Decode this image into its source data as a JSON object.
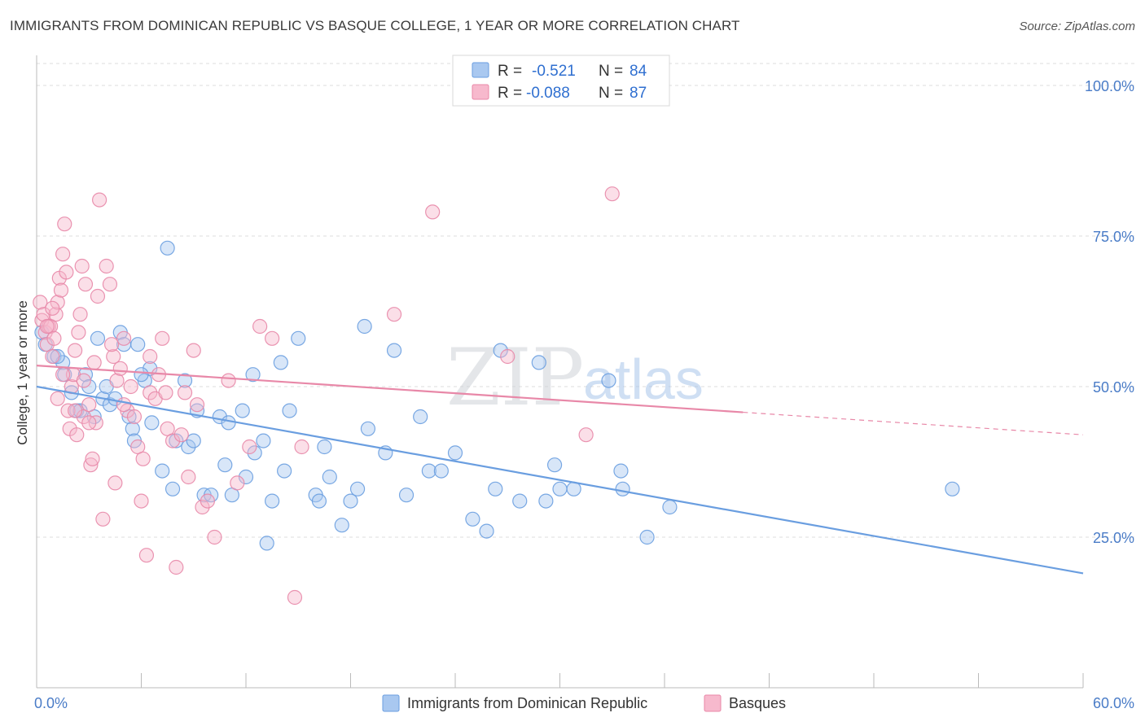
{
  "title": "IMMIGRANTS FROM DOMINICAN REPUBLIC VS BASQUE COLLEGE, 1 YEAR OR MORE CORRELATION CHART",
  "source": "Source: ZipAtlas.com",
  "watermark": {
    "zip": "ZIP",
    "atlas": "atlas"
  },
  "legend_top": {
    "rows": [
      {
        "r_label": "R =",
        "r_value": "-0.521",
        "n_label": "N =",
        "n_value": "84",
        "color": "#a9c8f0",
        "stroke": "#6a9ee0"
      },
      {
        "r_label": "R =",
        "r_value": "-0.088",
        "n_label": "N =",
        "n_value": "87",
        "color": "#f7b9cd",
        "stroke": "#e888a8"
      }
    ]
  },
  "legend_bottom": {
    "items": [
      {
        "label": "Immigrants from Dominican Republic",
        "color": "#a9c8f0",
        "stroke": "#6a9ee0"
      },
      {
        "label": "Basques",
        "color": "#f7b9cd",
        "stroke": "#e888a8"
      }
    ]
  },
  "chart_data": {
    "type": "scatter",
    "title": "IMMIGRANTS FROM DOMINICAN REPUBLIC VS BASQUE COLLEGE, 1 YEAR OR MORE CORRELATION CHART",
    "xlabel": "",
    "ylabel": "College, 1 year or more",
    "xlim": [
      0,
      60
    ],
    "ylim": [
      0,
      105
    ],
    "x_tick_labels": [
      "0.0%",
      "60.0%"
    ],
    "y_ticks": [
      25,
      50,
      75,
      100
    ],
    "y_tick_labels": [
      "25.0%",
      "50.0%",
      "75.0%",
      "100.0%"
    ],
    "grid": true,
    "legend_position": "top-center",
    "series": [
      {
        "name": "Immigrants from Dominican Republic",
        "color": "#6a9ee0",
        "fill": "#a9c8f0",
        "trend": {
          "x": [
            0,
            60
          ],
          "y": [
            50.0,
            19.0
          ],
          "dashed_from": null
        },
        "points": [
          [
            0.3,
            59
          ],
          [
            0.5,
            57
          ],
          [
            1.0,
            55
          ],
          [
            1.5,
            54
          ],
          [
            1.6,
            52
          ],
          [
            2.0,
            49
          ],
          [
            2.3,
            46
          ],
          [
            2.8,
            52
          ],
          [
            3.0,
            50
          ],
          [
            3.3,
            45
          ],
          [
            3.5,
            58
          ],
          [
            3.8,
            48
          ],
          [
            4.0,
            50
          ],
          [
            4.2,
            47
          ],
          [
            4.8,
            59
          ],
          [
            5.0,
            57
          ],
          [
            5.3,
            45
          ],
          [
            5.5,
            43
          ],
          [
            5.6,
            41
          ],
          [
            5.8,
            57
          ],
          [
            6.2,
            51
          ],
          [
            6.5,
            53
          ],
          [
            6.6,
            44
          ],
          [
            7.5,
            73
          ],
          [
            7.2,
            36
          ],
          [
            7.8,
            33
          ],
          [
            8.0,
            41
          ],
          [
            8.5,
            51
          ],
          [
            8.7,
            40
          ],
          [
            9.0,
            41
          ],
          [
            9.2,
            46
          ],
          [
            9.6,
            32
          ],
          [
            10.0,
            32
          ],
          [
            10.5,
            45
          ],
          [
            10.8,
            37
          ],
          [
            11.0,
            44
          ],
          [
            11.2,
            32
          ],
          [
            11.8,
            46
          ],
          [
            12.0,
            35
          ],
          [
            12.5,
            39
          ],
          [
            12.4,
            52
          ],
          [
            13.0,
            41
          ],
          [
            13.5,
            31
          ],
          [
            14.0,
            54
          ],
          [
            14.2,
            36
          ],
          [
            14.5,
            46
          ],
          [
            15.0,
            58
          ],
          [
            16.0,
            32
          ],
          [
            16.2,
            31
          ],
          [
            16.5,
            40
          ],
          [
            16.8,
            35
          ],
          [
            17.5,
            27
          ],
          [
            18.0,
            31
          ],
          [
            18.4,
            33
          ],
          [
            18.8,
            60
          ],
          [
            19.0,
            43
          ],
          [
            20.0,
            39
          ],
          [
            20.5,
            56
          ],
          [
            21.2,
            32
          ],
          [
            22.0,
            45
          ],
          [
            22.5,
            36
          ],
          [
            23.2,
            36
          ],
          [
            24.0,
            39
          ],
          [
            25.0,
            28
          ],
          [
            25.8,
            26
          ],
          [
            26.3,
            33
          ],
          [
            26.6,
            56
          ],
          [
            27.7,
            31
          ],
          [
            28.8,
            54
          ],
          [
            29.2,
            31
          ],
          [
            29.7,
            37
          ],
          [
            30.0,
            33
          ],
          [
            30.8,
            33
          ],
          [
            32.8,
            51
          ],
          [
            33.5,
            36
          ],
          [
            33.6,
            33
          ],
          [
            35.0,
            25
          ],
          [
            36.3,
            30
          ],
          [
            52.5,
            33
          ],
          [
            13.2,
            24
          ],
          [
            1.2,
            55
          ],
          [
            2.5,
            46
          ],
          [
            4.5,
            48
          ],
          [
            6.0,
            52
          ]
        ]
      },
      {
        "name": "Basques",
        "color": "#e888a8",
        "fill": "#f7b9cd",
        "trend": {
          "x": [
            0,
            60
          ],
          "y": [
            53.5,
            42.0
          ],
          "dashed_from": 40.5
        },
        "points": [
          [
            0.2,
            64
          ],
          [
            0.3,
            61
          ],
          [
            0.4,
            62
          ],
          [
            0.5,
            59
          ],
          [
            0.6,
            57
          ],
          [
            0.7,
            60
          ],
          [
            0.8,
            60
          ],
          [
            0.9,
            55
          ],
          [
            1.0,
            58
          ],
          [
            1.1,
            62
          ],
          [
            1.2,
            64
          ],
          [
            1.3,
            68
          ],
          [
            1.4,
            66
          ],
          [
            1.5,
            72
          ],
          [
            1.6,
            77
          ],
          [
            1.7,
            69
          ],
          [
            1.8,
            46
          ],
          [
            1.9,
            43
          ],
          [
            2.0,
            50
          ],
          [
            2.1,
            52
          ],
          [
            2.2,
            56
          ],
          [
            2.3,
            42
          ],
          [
            2.4,
            59
          ],
          [
            2.5,
            62
          ],
          [
            2.6,
            70
          ],
          [
            2.7,
            45
          ],
          [
            2.8,
            67
          ],
          [
            3.0,
            47
          ],
          [
            3.1,
            37
          ],
          [
            3.2,
            38
          ],
          [
            3.3,
            54
          ],
          [
            3.4,
            44
          ],
          [
            3.5,
            65
          ],
          [
            3.6,
            81
          ],
          [
            3.8,
            28
          ],
          [
            4.0,
            70
          ],
          [
            4.2,
            67
          ],
          [
            4.4,
            55
          ],
          [
            4.5,
            34
          ],
          [
            4.6,
            51
          ],
          [
            4.8,
            53
          ],
          [
            5.0,
            58
          ],
          [
            5.2,
            46
          ],
          [
            5.4,
            50
          ],
          [
            5.6,
            45
          ],
          [
            5.8,
            40
          ],
          [
            6.0,
            31
          ],
          [
            6.1,
            38
          ],
          [
            6.3,
            22
          ],
          [
            6.5,
            49
          ],
          [
            6.8,
            48
          ],
          [
            7.0,
            52
          ],
          [
            7.2,
            58
          ],
          [
            7.5,
            43
          ],
          [
            7.8,
            41
          ],
          [
            8.0,
            20
          ],
          [
            8.5,
            49
          ],
          [
            8.7,
            35
          ],
          [
            9.0,
            56
          ],
          [
            9.2,
            47
          ],
          [
            9.5,
            30
          ],
          [
            9.8,
            31
          ],
          [
            10.2,
            25
          ],
          [
            11.0,
            51
          ],
          [
            11.5,
            34
          ],
          [
            12.2,
            40
          ],
          [
            12.8,
            60
          ],
          [
            13.5,
            58
          ],
          [
            14.8,
            15
          ],
          [
            15.2,
            40
          ],
          [
            20.5,
            62
          ],
          [
            22.7,
            79
          ],
          [
            27.0,
            55
          ],
          [
            31.5,
            42
          ],
          [
            33.0,
            82
          ],
          [
            0.6,
            60
          ],
          [
            1.5,
            52
          ],
          [
            2.2,
            46
          ],
          [
            3.0,
            44
          ],
          [
            5.0,
            47
          ],
          [
            6.5,
            55
          ],
          [
            7.4,
            49
          ],
          [
            8.3,
            42
          ],
          [
            4.3,
            57
          ],
          [
            1.2,
            48
          ],
          [
            0.9,
            63
          ],
          [
            2.7,
            51
          ]
        ]
      }
    ]
  }
}
